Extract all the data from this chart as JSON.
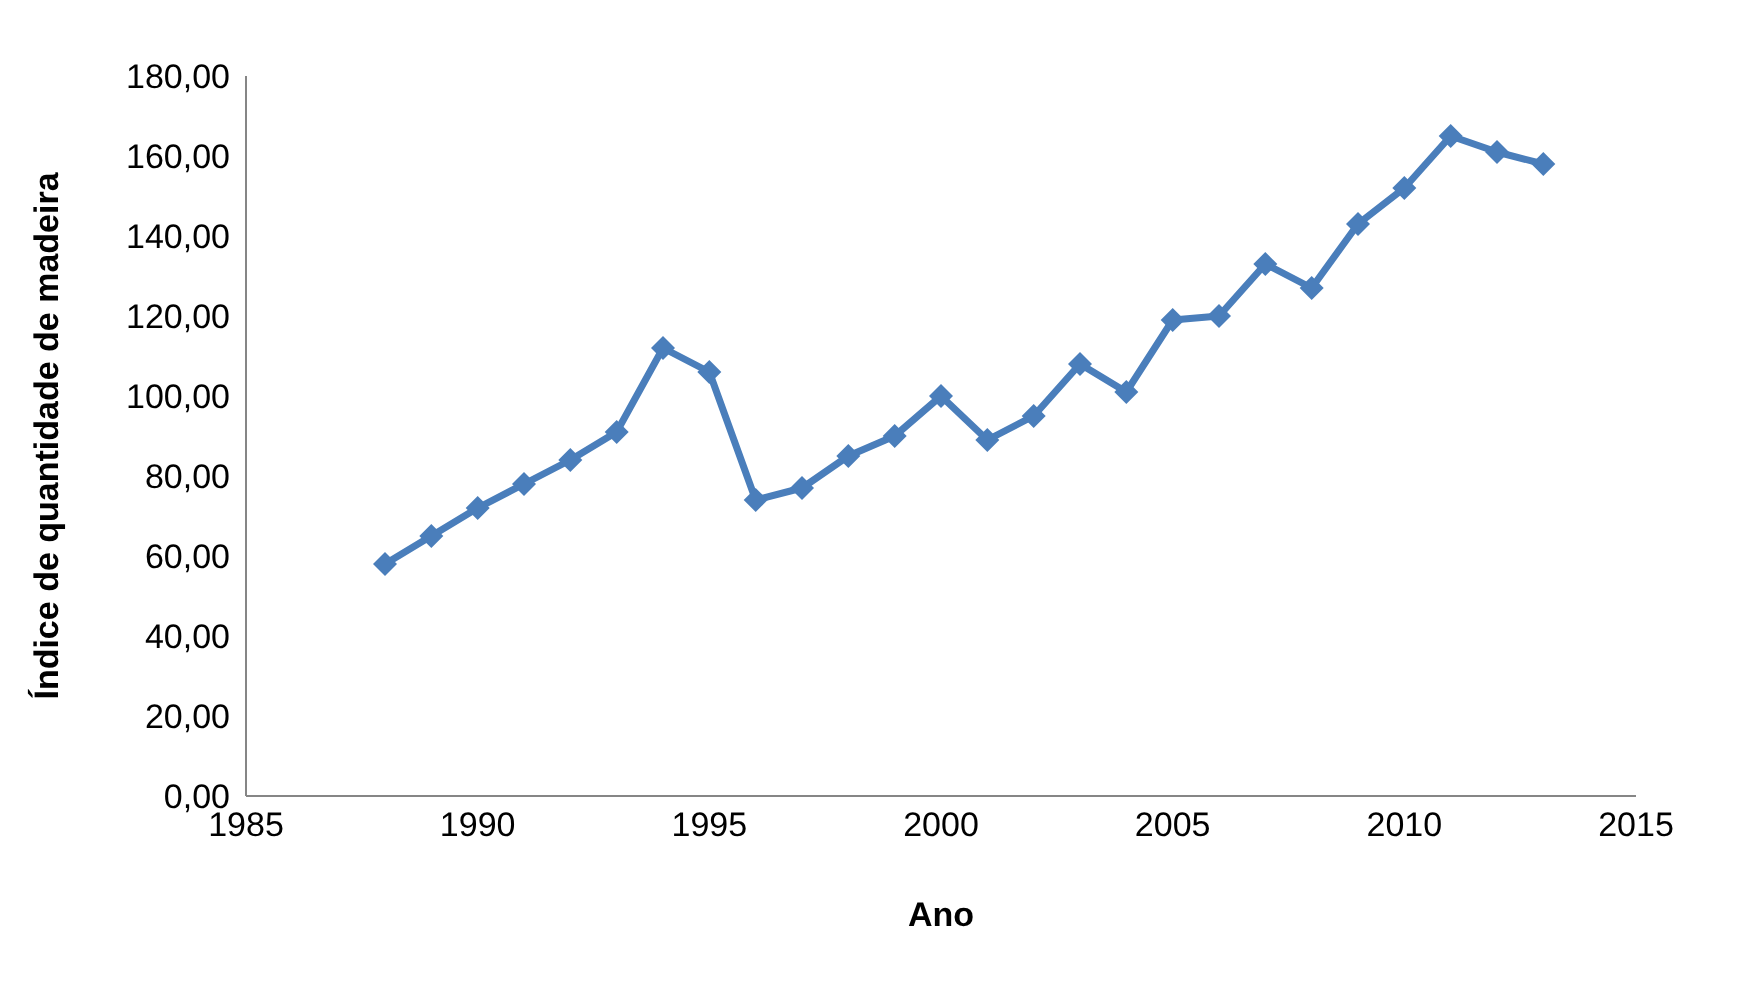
{
  "chart_data": {
    "type": "line",
    "xlabel": "Ano",
    "ylabel": "Índice de quantidade de madeira",
    "x": [
      1988,
      1989,
      1990,
      1991,
      1992,
      1993,
      1994,
      1995,
      1996,
      1997,
      1998,
      1999,
      2000,
      2001,
      2002,
      2003,
      2004,
      2005,
      2006,
      2007,
      2008,
      2009,
      2010,
      2011,
      2012,
      2013
    ],
    "series": [
      {
        "color": "#4a7ebb",
        "values": [
          58,
          65,
          72,
          78,
          84,
          91,
          112,
          106,
          74,
          77,
          85,
          90,
          100,
          89,
          95,
          108,
          101,
          119,
          120,
          133,
          127,
          143,
          152,
          165,
          161,
          158
        ]
      }
    ],
    "xlim": [
      1985,
      2015
    ],
    "xticks": [
      1985,
      1990,
      1995,
      2000,
      2005,
      2010,
      2015
    ],
    "ylim": [
      0,
      180
    ],
    "yticks": [
      {
        "value": 0,
        "label": "0,00"
      },
      {
        "value": 20,
        "label": "20,00"
      },
      {
        "value": 40,
        "label": "40,00"
      },
      {
        "value": 60,
        "label": "60,00"
      },
      {
        "value": 80,
        "label": "80,00"
      },
      {
        "value": 100,
        "label": "100,00"
      },
      {
        "value": 120,
        "label": "120,00"
      },
      {
        "value": 140,
        "label": "140,00"
      },
      {
        "value": 160,
        "label": "160,00"
      },
      {
        "value": 180,
        "label": "180,00"
      }
    ],
    "marker": "diamond",
    "grid": false,
    "legend": false
  }
}
